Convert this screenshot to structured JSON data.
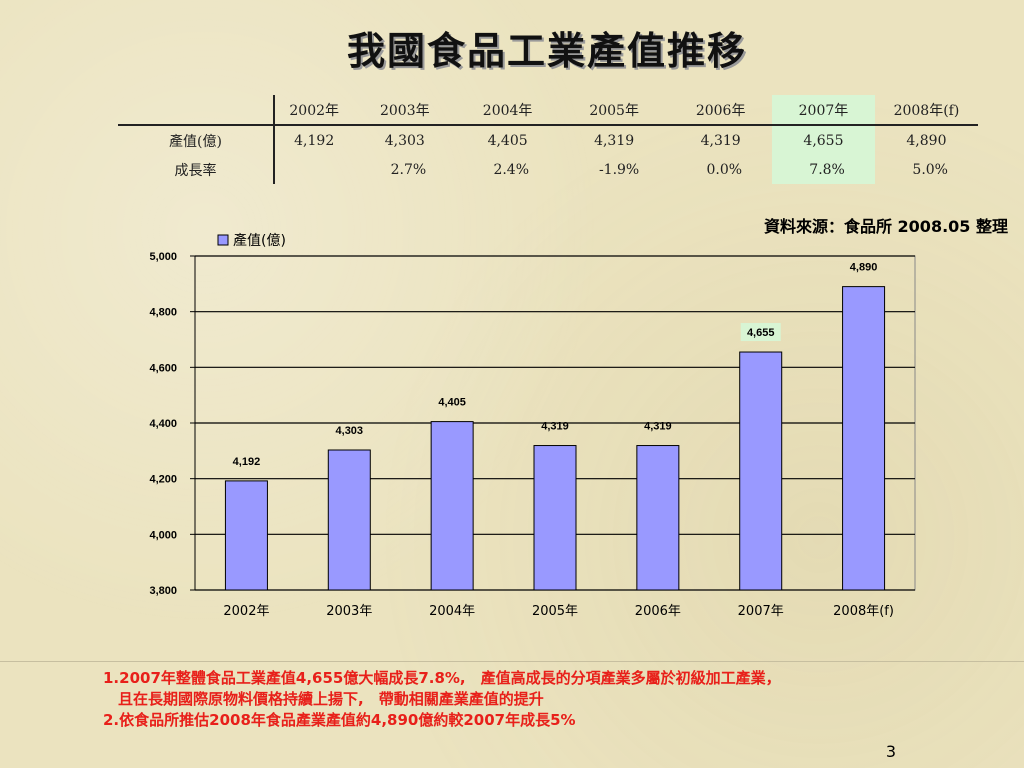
{
  "title": "我國食品工業產值推移",
  "table": {
    "headers": [
      "2002年",
      "2003年",
      "2004年",
      "2005年",
      "2006年",
      "2007年",
      "2008年(f)"
    ],
    "rows": [
      {
        "label": "產值(億)",
        "cells": [
          "4,192",
          "4,303",
          "4,405",
          "4,319",
          "4,319",
          "4,655",
          "4,890"
        ]
      },
      {
        "label": "成長率",
        "cells": [
          "",
          "2.7%",
          "2.4%",
          "-1.9%",
          "0.0%",
          "7.8%",
          "5.0%"
        ]
      }
    ],
    "highlight_column": 5,
    "highlight_color": "#d8f5d4"
  },
  "source": "資料來源：食品所 2008.05 整理",
  "chart_data": {
    "type": "bar",
    "categories": [
      "2002年",
      "2003年",
      "2004年",
      "2005年",
      "2006年",
      "2007年",
      "2008年(f)"
    ],
    "series": [
      {
        "name": "產值(億)",
        "values": [
          4192,
          4303,
          4405,
          4319,
          4319,
          4655,
          4890
        ]
      }
    ],
    "data_labels": [
      "4,192",
      "4,303",
      "4,405",
      "4,319",
      "4,319",
      "4,655",
      "4,890"
    ],
    "highlight_label_index": 5,
    "ylim": [
      3800,
      5000
    ],
    "yticks": [
      3800,
      4000,
      4200,
      4400,
      4600,
      4800,
      5000
    ],
    "ytick_labels": [
      "3,800",
      "4,000",
      "4,200",
      "4,400",
      "4,600",
      "4,800",
      "5,000"
    ],
    "grid": true,
    "legend": "top-left",
    "bar_color": "#9999ff",
    "xlabel": "",
    "ylabel": ""
  },
  "notes": {
    "line1": "1.2007年整體食品工業產值4,655億大幅成長7.8%,　產值高成長的分項產業多屬於初級加工產業，",
    "line2": "　且在長期國際原物料價格持續上揚下,　帶動相關產業產值的提升",
    "line3": "2.依食品所推估2008年食品產業產值約4,890億約較2007年成長5%"
  },
  "page_number": "3"
}
